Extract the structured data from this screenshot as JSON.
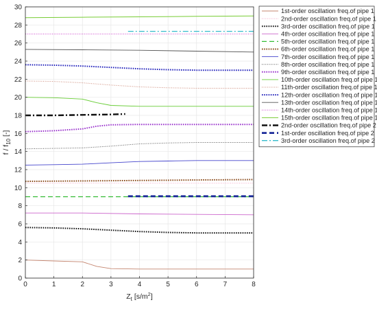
{
  "chart_data": {
    "type": "line",
    "xlabel_main": "Z",
    "xlabel_sub": "t",
    "xlabel_unit": " [s/m",
    "xlabel_sup": "2",
    "xlabel_close": "]",
    "ylabel_main": "f / f",
    "ylabel_sub": "10",
    "ylabel_unit": " [-]",
    "xlim": [
      0,
      8
    ],
    "ylim": [
      0,
      30
    ],
    "xticks": [
      0,
      1,
      2,
      3,
      4,
      5,
      6,
      7,
      8
    ],
    "yticks": [
      0,
      2,
      4,
      6,
      8,
      10,
      12,
      14,
      16,
      18,
      20,
      22,
      24,
      26,
      28,
      30
    ],
    "grid": true,
    "legend_position": "outside-right",
    "series": [
      {
        "name": "1st-order oscillation freq.of pipe 1",
        "color": "#c4856f",
        "style": "solid",
        "width": 0.9,
        "x": [
          0,
          1,
          2,
          2.5,
          3,
          4,
          5,
          6,
          7,
          8
        ],
        "y": [
          2.0,
          1.9,
          1.8,
          1.3,
          1.05,
          1.0,
          1.0,
          1.0,
          1.0,
          1.0
        ]
      },
      {
        "name": "2nd-order oscillation freq.of pipe 1",
        "color": "#f5a8c8",
        "style": "dotted",
        "width": 1.0,
        "x": [
          0,
          2,
          4,
          6,
          8
        ],
        "y": [
          10.5,
          10.5,
          10.5,
          10.5,
          10.5
        ]
      },
      {
        "name": "3rd-order oscillation freq.of pipe 1",
        "color": "#111111",
        "style": "dotted",
        "width": 2.0,
        "x": [
          0,
          1,
          2,
          3,
          4,
          5,
          6,
          7,
          8
        ],
        "y": [
          5.6,
          5.55,
          5.45,
          5.3,
          5.15,
          5.05,
          5.0,
          5.0,
          5.0
        ]
      },
      {
        "name": "4th-order oscillation freq.of pipe 1",
        "color": "#cc66cc",
        "style": "solid",
        "width": 0.9,
        "x": [
          0,
          2,
          4,
          6,
          8
        ],
        "y": [
          7.2,
          7.2,
          7.1,
          7.05,
          7.0
        ]
      },
      {
        "name": "5th-order oscillation freq.of pipe 1",
        "color": "#33bb33",
        "style": "dashed",
        "width": 1.3,
        "x": [
          0,
          2,
          4,
          6,
          8
        ],
        "y": [
          9.0,
          9.0,
          9.0,
          9.0,
          9.0
        ]
      },
      {
        "name": "6th-order oscillation freq.of pipe 1",
        "color": "#8a4a1a",
        "style": "dotted",
        "width": 2.0,
        "x": [
          0,
          2,
          4,
          6,
          8
        ],
        "y": [
          10.7,
          10.75,
          10.8,
          10.85,
          10.9
        ]
      },
      {
        "name": "7th-order oscillation freq.of pipe 1",
        "color": "#4444cc",
        "style": "solid",
        "width": 0.9,
        "x": [
          0,
          1,
          2,
          3,
          4,
          5,
          6,
          7,
          8
        ],
        "y": [
          12.5,
          12.55,
          12.6,
          12.75,
          12.9,
          12.95,
          13.0,
          13.0,
          13.0
        ]
      },
      {
        "name": "8th-order oscillation freq.of pipe 1",
        "color": "#555555",
        "style": "dotted",
        "width": 1.0,
        "x": [
          0,
          1,
          2,
          3,
          4,
          5,
          6,
          7,
          8
        ],
        "y": [
          14.3,
          14.35,
          14.4,
          14.6,
          14.85,
          14.95,
          15.0,
          15.0,
          15.0
        ]
      },
      {
        "name": "9th-order oscillation freq.of pipe 1",
        "color": "#9933cc",
        "style": "dotted",
        "width": 2.0,
        "x": [
          0,
          1,
          2,
          2.5,
          3,
          4,
          5,
          6,
          7,
          8
        ],
        "y": [
          16.2,
          16.3,
          16.5,
          16.8,
          16.95,
          17.0,
          17.0,
          17.0,
          17.0,
          17.0
        ]
      },
      {
        "name": "10th-order oscillation freq.of pipe 1",
        "color": "#66cc33",
        "style": "solid",
        "width": 0.9,
        "x": [
          0,
          1,
          2,
          2.5,
          3,
          4,
          5,
          6,
          7,
          8
        ],
        "y": [
          20.0,
          19.95,
          19.8,
          19.4,
          19.1,
          19.0,
          19.0,
          19.0,
          19.0,
          19.0
        ]
      },
      {
        "name": "11th-order oscillation freq.of pipe 1",
        "color": "#cc8877",
        "style": "dotted",
        "width": 1.0,
        "x": [
          0,
          1,
          2,
          3,
          4,
          5,
          6,
          7,
          8
        ],
        "y": [
          21.8,
          21.75,
          21.6,
          21.35,
          21.15,
          21.05,
          21.0,
          21.0,
          21.0
        ]
      },
      {
        "name": "12th-order oscillation freq.of pipe 1",
        "color": "#2222bb",
        "style": "dotted",
        "width": 2.0,
        "x": [
          0,
          1,
          2,
          3,
          4,
          5,
          6,
          7,
          8
        ],
        "y": [
          23.6,
          23.55,
          23.45,
          23.3,
          23.15,
          23.05,
          23.0,
          23.0,
          23.0
        ]
      },
      {
        "name": "13th-order oscillation freq.of pipe 1",
        "color": "#555555",
        "style": "solid",
        "width": 0.9,
        "x": [
          0,
          2,
          4,
          6,
          8
        ],
        "y": [
          25.3,
          25.25,
          25.2,
          25.1,
          25.0
        ]
      },
      {
        "name": "14th-order oscillation freq.of pipe 1",
        "color": "#cc44cc",
        "style": "dotted",
        "width": 1.0,
        "x": [
          0,
          2,
          4,
          6,
          8
        ],
        "y": [
          27.0,
          27.0,
          27.0,
          27.0,
          27.0
        ]
      },
      {
        "name": "15th-order oscillation freq.of pipe 1",
        "color": "#77cc33",
        "style": "solid",
        "width": 1.0,
        "x": [
          0,
          2,
          4,
          6,
          8
        ],
        "y": [
          28.8,
          28.85,
          28.9,
          28.95,
          29.0
        ]
      },
      {
        "name": "2nd-order oscillation freq.of pipe 2",
        "color": "#111111",
        "style": "dashdot",
        "width": 2.4,
        "x": [
          0,
          1,
          2,
          3,
          3.5
        ],
        "y": [
          18.0,
          18.0,
          18.05,
          18.1,
          18.15
        ]
      },
      {
        "name": "1st-order oscillation freq.of pipe 2",
        "color": "#1a2a99",
        "style": "dashed",
        "width": 2.8,
        "x": [
          3.6,
          5,
          6,
          7,
          8
        ],
        "y": [
          9.05,
          9.05,
          9.05,
          9.05,
          9.05
        ]
      },
      {
        "name": "3rd-order oscillation freq.of pipe 2",
        "color": "#33bbcc",
        "style": "dashdot",
        "width": 1.3,
        "x": [
          3.6,
          5,
          6,
          7,
          8
        ],
        "y": [
          27.3,
          27.3,
          27.3,
          27.3,
          27.3
        ]
      }
    ]
  }
}
